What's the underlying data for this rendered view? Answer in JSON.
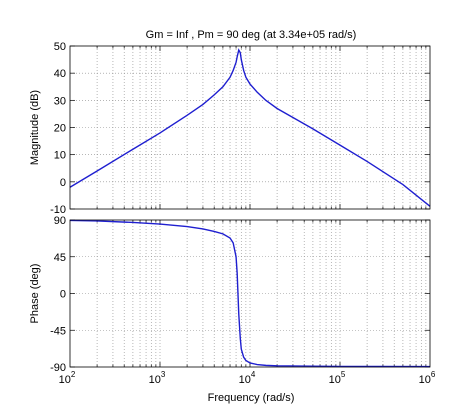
{
  "chart_data": [
    {
      "type": "line",
      "title": "Gm = Inf ,  Pm = 90 deg (at 3.34e+05 rad/s)",
      "ylabel": "Magnitude (dB)",
      "xscale": "log",
      "xlim": [
        100,
        1000000
      ],
      "ylim": [
        -10,
        50
      ],
      "yticks": [
        -10,
        0,
        10,
        20,
        30,
        40,
        50
      ],
      "grid": true,
      "color": "#1f1fd0",
      "series": [
        {
          "x": [
            100,
            200,
            500,
            1000,
            2000,
            3000,
            4000,
            5000,
            6000,
            6500,
            7000,
            7200,
            7500,
            7800,
            8000,
            8500,
            9000,
            10000,
            12000,
            15000,
            20000,
            50000,
            100000,
            200000,
            500000,
            1000000
          ],
          "y": [
            -2,
            4,
            12,
            18,
            24.5,
            28.5,
            32,
            35,
            38.5,
            41,
            44,
            46,
            48.5,
            47.5,
            45,
            41,
            38.5,
            36,
            33,
            30,
            27,
            19.5,
            13.5,
            7.5,
            -1,
            -9
          ]
        }
      ]
    },
    {
      "type": "line",
      "xlabel": "Frequency  (rad/s)",
      "ylabel": "Phase (deg)",
      "xscale": "log",
      "xlim": [
        100,
        1000000
      ],
      "ylim": [
        -90,
        90
      ],
      "yticks": [
        -90,
        -45,
        0,
        45,
        90
      ],
      "xticks": [
        "10",
        "10",
        "10",
        "10",
        "10"
      ],
      "xtick_exponents": [
        "2",
        "3",
        "4",
        "5",
        "6"
      ],
      "grid": true,
      "color": "#1f1fd0",
      "series": [
        {
          "x": [
            100,
            200,
            500,
            1000,
            2000,
            3000,
            4000,
            5000,
            6000,
            6500,
            7000,
            7200,
            7500,
            7800,
            8000,
            8500,
            9000,
            10000,
            12000,
            15000,
            20000,
            50000,
            100000,
            1000000
          ],
          "y": [
            89.5,
            88.8,
            87,
            85,
            82,
            79,
            76,
            73,
            68,
            62,
            45,
            25,
            -25,
            -55,
            -68,
            -78,
            -82,
            -85,
            -87,
            -88,
            -88.5,
            -89,
            -89.3,
            -89.5
          ]
        }
      ]
    }
  ]
}
